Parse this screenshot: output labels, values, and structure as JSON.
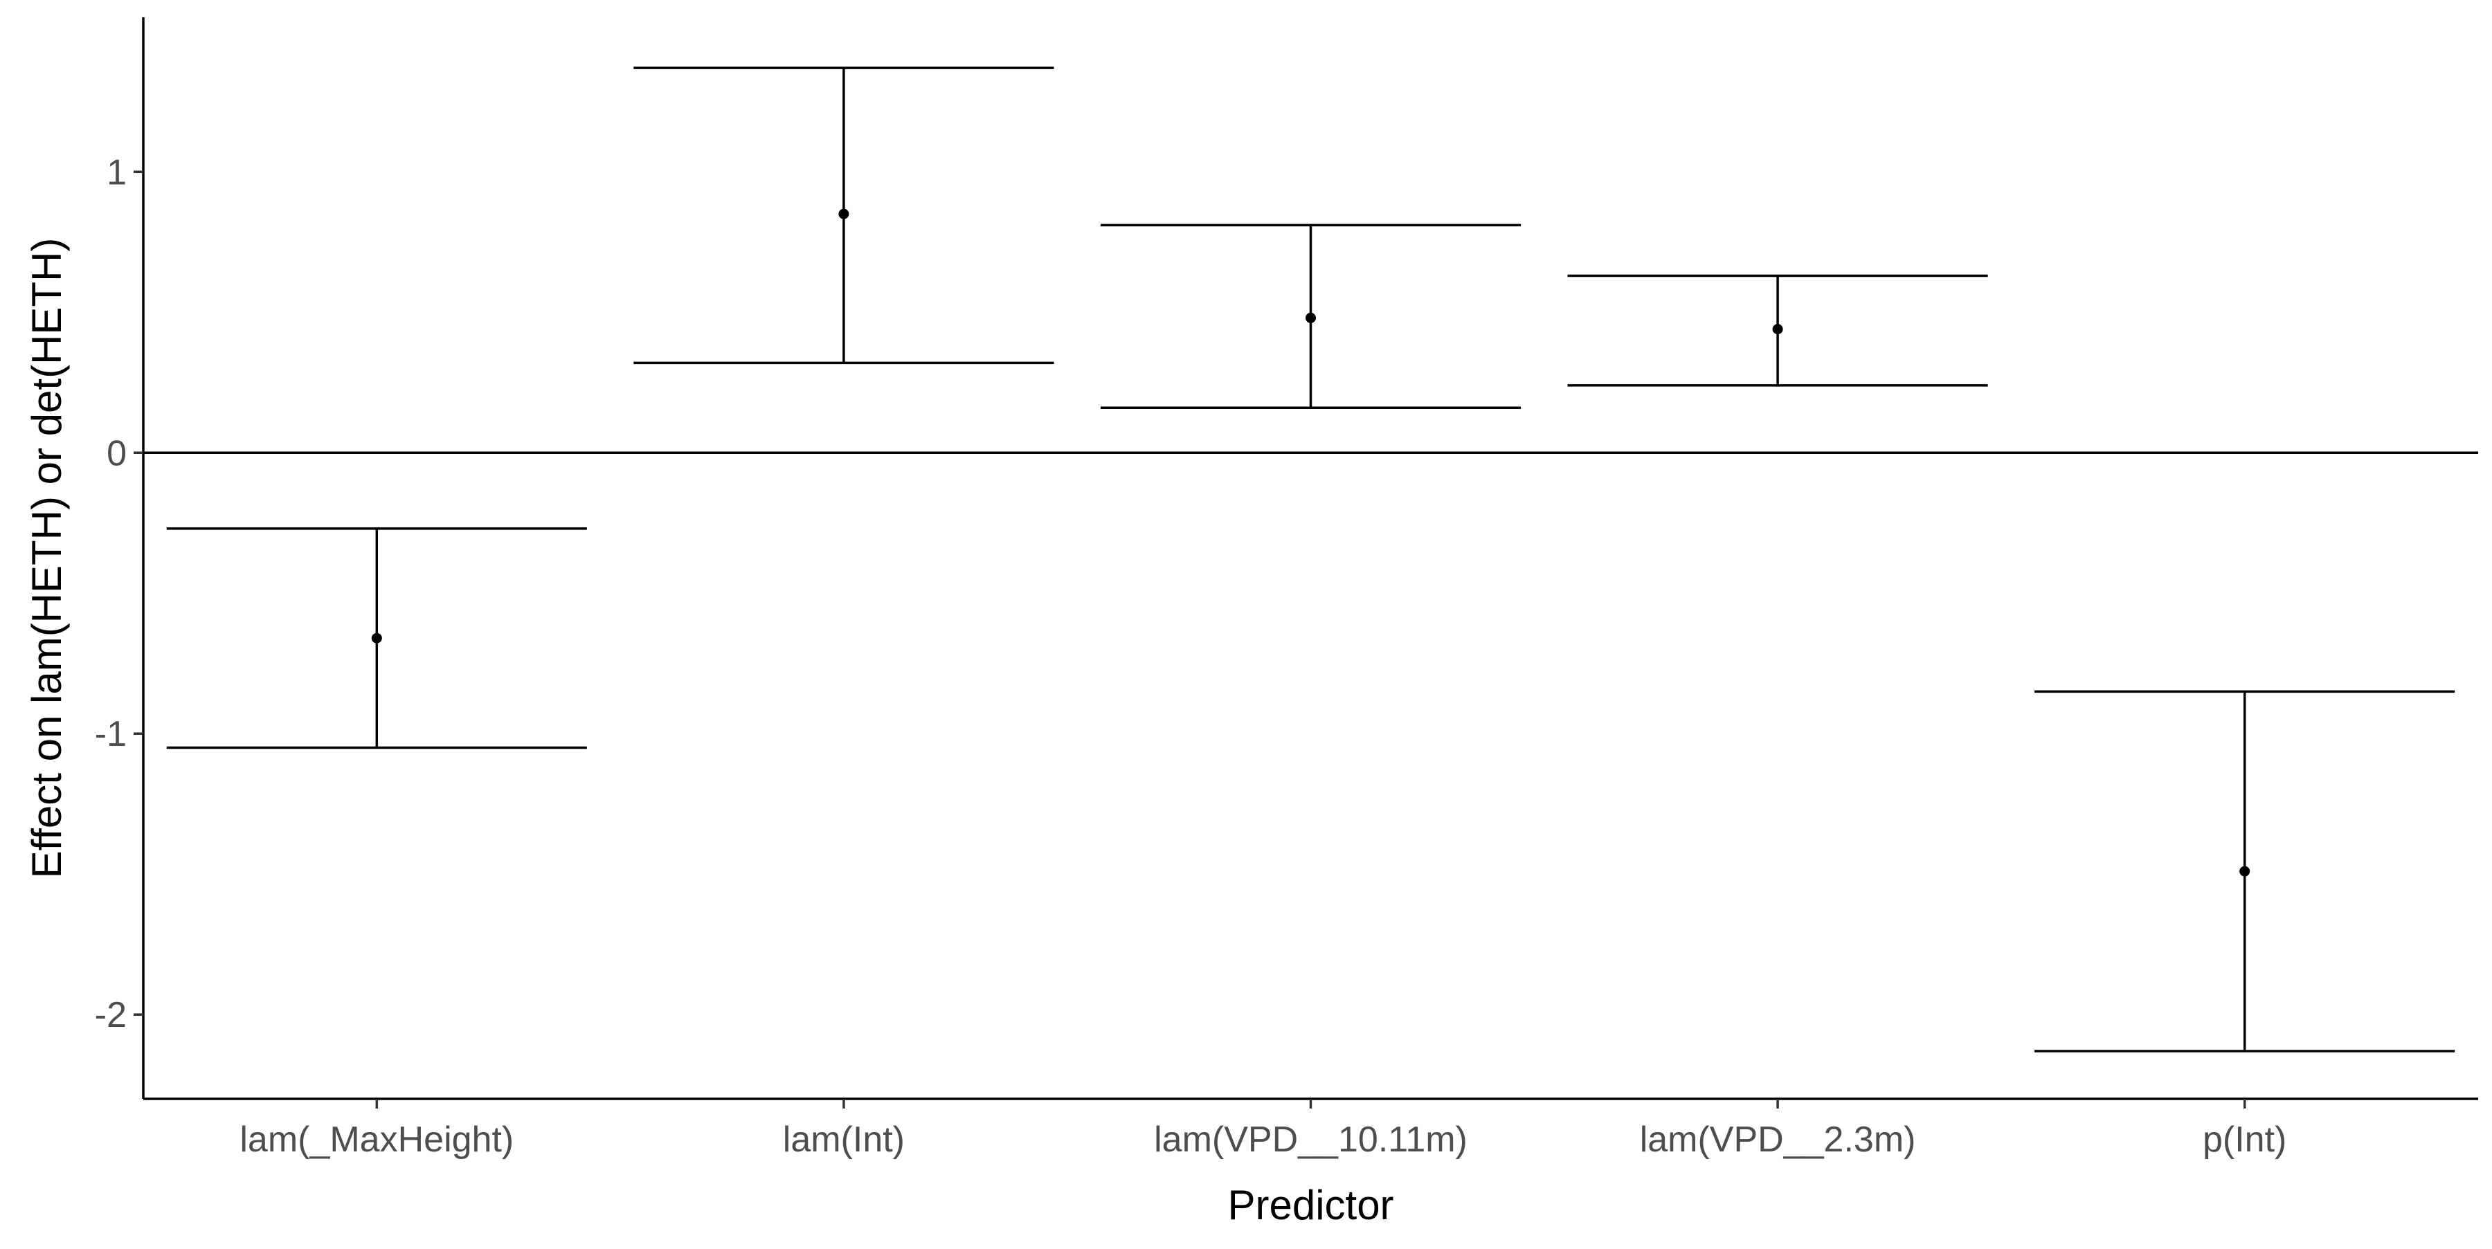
{
  "chart_data": {
    "type": "scatter",
    "subtype": "point-with-errorbars",
    "title": "",
    "xlabel": "Predictor",
    "ylabel": "Effect on lam(HETH) or det(HETH)",
    "categories": [
      "lam(_MaxHeight)",
      "lam(Int)",
      "lam(VPD__10.11m)",
      "lam(VPD__2.3m)",
      "p(Int)"
    ],
    "estimates": [
      -0.66,
      0.85,
      0.48,
      0.44,
      -1.49
    ],
    "lower": [
      -1.05,
      0.32,
      0.16,
      0.24,
      -2.13
    ],
    "upper": [
      -0.27,
      1.37,
      0.81,
      0.63,
      -0.85
    ],
    "ylim": [
      -2.3,
      1.55
    ],
    "yticks": [
      -2,
      -1,
      0,
      1
    ],
    "ytick_labels": [
      "-2",
      "-1",
      "0",
      "1"
    ],
    "reference_line": 0,
    "grid": false,
    "legend": "none",
    "colors": {
      "ink": "#000000",
      "tick_text": "#4d4d4d"
    }
  }
}
